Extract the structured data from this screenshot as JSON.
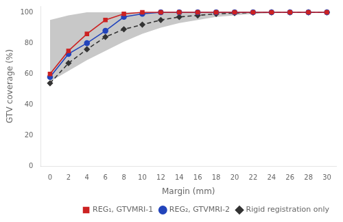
{
  "chart_data": {
    "type": "line",
    "xlabel": "Margin (mm)",
    "ylabel": "GTV coverage (%)",
    "x": [
      0,
      2,
      4,
      6,
      8,
      10,
      12,
      14,
      16,
      18,
      20,
      22,
      24,
      26,
      28,
      30
    ],
    "series": [
      {
        "name": "REG₁, GTVMRI-1",
        "color": "#cc2222",
        "marker": "square",
        "line_style": "solid",
        "values": [
          60,
          75,
          86,
          95,
          99,
          100,
          100,
          100,
          100,
          100,
          100,
          100,
          100,
          100,
          100,
          100
        ]
      },
      {
        "name": "REG₂, GTVMRI-2",
        "color": "#2244bb",
        "marker": "circle",
        "line_style": "solid",
        "values": [
          58,
          73,
          80,
          88,
          97,
          99,
          100,
          100,
          100,
          100,
          100,
          100,
          100,
          100,
          100,
          100
        ]
      },
      {
        "name": "Rigid registration only",
        "color": "#333333",
        "marker": "diamond",
        "line_style": "dashed",
        "values": [
          54,
          67,
          76,
          84,
          89,
          92,
          95,
          97,
          98,
          99,
          99.5,
          99.8,
          100,
          100,
          100,
          100
        ]
      }
    ],
    "band": {
      "color": "#c8c8c8",
      "upper": [
        95,
        98,
        100,
        100,
        100,
        100,
        100,
        100,
        100,
        100,
        100,
        100,
        100,
        100,
        100,
        100
      ],
      "lower": [
        55,
        62,
        69,
        75,
        81,
        86,
        90,
        93,
        95,
        97,
        98,
        99,
        99.5,
        99.8,
        100,
        100
      ]
    },
    "xlim": [
      -1,
      31
    ],
    "xticks": [
      0,
      2,
      4,
      6,
      8,
      10,
      12,
      14,
      16,
      18,
      20,
      22,
      24,
      26,
      28,
      30
    ],
    "ylim": [
      0,
      104
    ],
    "yticks": [
      0,
      20,
      40,
      60,
      80,
      100
    ],
    "grid": false,
    "legend": "lower right"
  }
}
